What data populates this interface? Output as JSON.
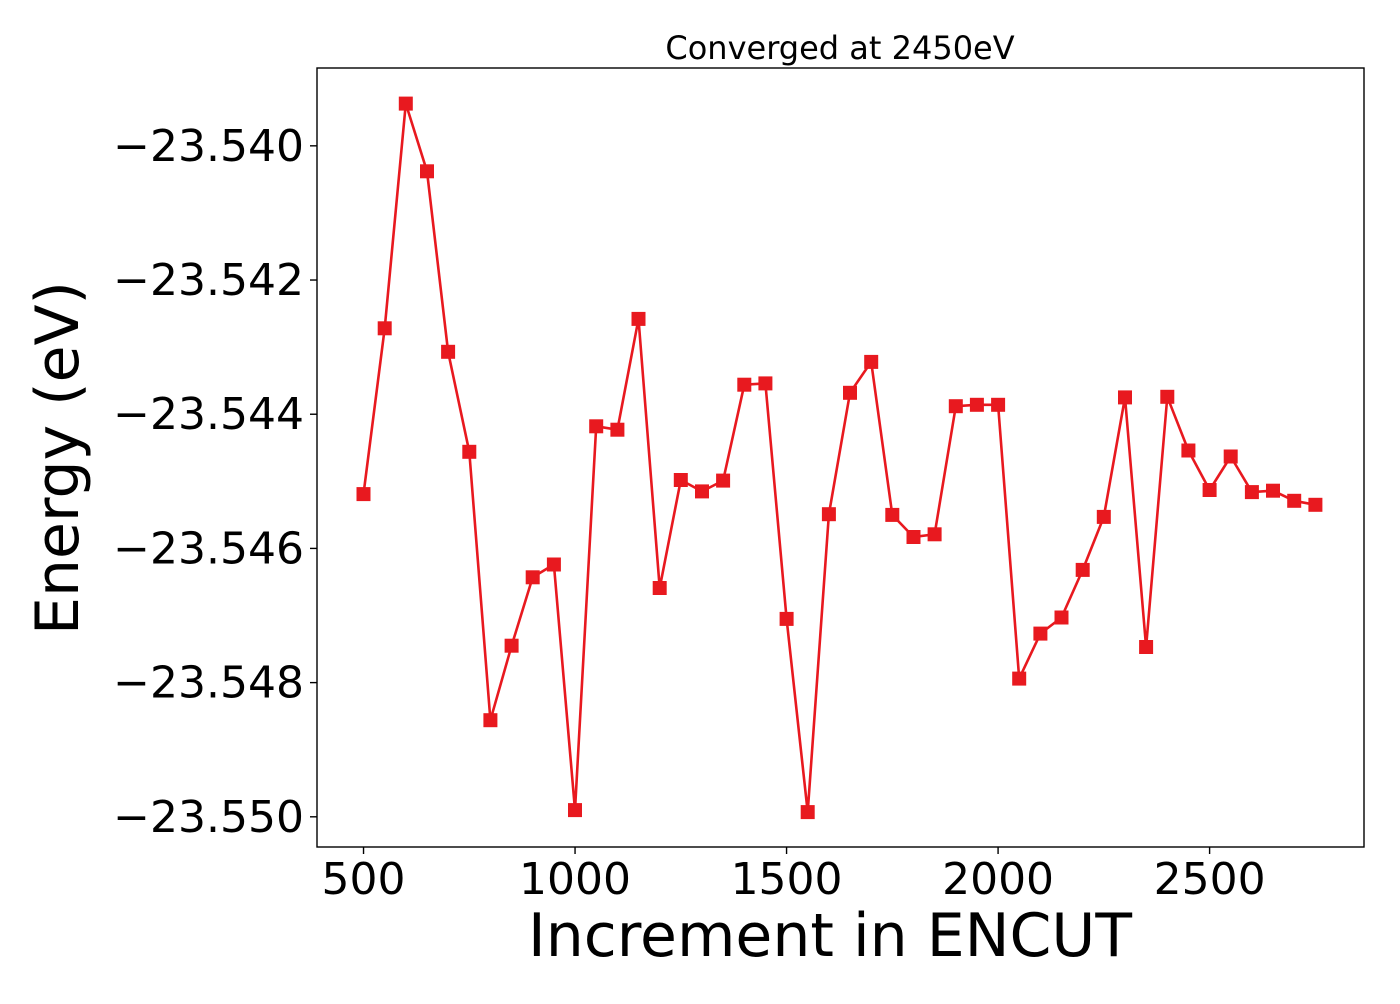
{
  "chart_data": {
    "type": "line",
    "title": "Converged at 2450eV",
    "xlabel": "Increment in ENCUT",
    "ylabel": "Energy (eV)",
    "xlim": [
      390,
      2865
    ],
    "ylim": [
      -23.55045,
      -23.53884
    ],
    "x_ticks": [
      500,
      1000,
      1500,
      2000,
      2500
    ],
    "x_tick_labels": [
      "500",
      "1000",
      "1500",
      "2000",
      "2500"
    ],
    "y_ticks": [
      -23.54,
      -23.542,
      -23.544,
      -23.546,
      -23.548,
      -23.55
    ],
    "y_tick_labels": [
      "−23.540",
      "−23.542",
      "−23.544",
      "−23.546",
      "−23.548",
      "−23.550"
    ],
    "grid": false,
    "series": [
      {
        "color": "#e8191f",
        "marker": "square",
        "x": [
          500,
          550,
          600,
          650,
          700,
          750,
          800,
          850,
          900,
          950,
          1000,
          1050,
          1100,
          1150,
          1200,
          1250,
          1300,
          1350,
          1400,
          1450,
          1500,
          1550,
          1600,
          1650,
          1700,
          1750,
          1800,
          1850,
          1900,
          1950,
          2000,
          2050,
          2100,
          2150,
          2200,
          2250,
          2300,
          2350,
          2400,
          2450,
          2500,
          2550,
          2600,
          2650,
          2700,
          2750
        ],
        "y": [
          -23.54519,
          -23.54272,
          -23.53937,
          -23.54038,
          -23.54307,
          -23.54456,
          -23.54856,
          -23.54745,
          -23.54643,
          -23.54624,
          -23.5499,
          -23.54418,
          -23.54423,
          -23.54258,
          -23.54659,
          -23.54498,
          -23.54515,
          -23.54499,
          -23.54356,
          -23.54354,
          -23.54705,
          -23.54993,
          -23.54549,
          -23.54368,
          -23.54322,
          -23.5455,
          -23.54583,
          -23.54579,
          -23.54388,
          -23.54386,
          -23.54386,
          -23.54794,
          -23.54727,
          -23.54703,
          -23.54632,
          -23.54553,
          -23.54375,
          -23.54747,
          -23.54374,
          -23.54454,
          -23.54513,
          -23.54463,
          -23.54516,
          -23.54514,
          -23.54529,
          -23.54535
        ]
      }
    ]
  }
}
